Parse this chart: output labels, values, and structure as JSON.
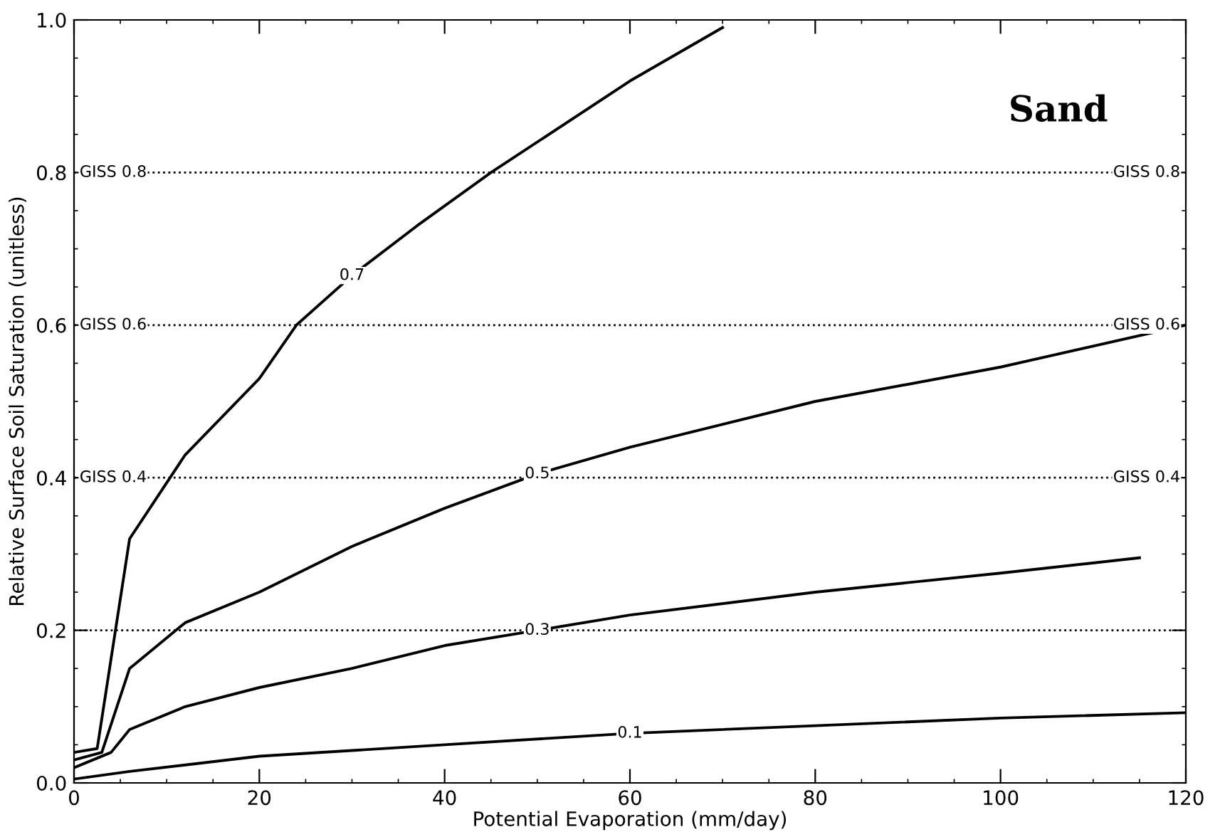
{
  "chart_data": {
    "type": "line",
    "title": "Sand",
    "xlabel": "Potential Evaporation (mm/day)",
    "ylabel": "Relative Surface Soil Saturation (unitless)",
    "xlim": [
      0,
      120
    ],
    "ylim": [
      0,
      1.0
    ],
    "xticks": [
      0,
      20,
      40,
      60,
      80,
      100,
      120
    ],
    "yticks": [
      {
        "value": 0,
        "label": "0.0"
      },
      0.2,
      0.4,
      0.6,
      0.8,
      {
        "value": 1.0,
        "label": "1.0"
      }
    ],
    "grid": false,
    "legend": false,
    "marker": "none",
    "line_style": "solid",
    "series": [
      {
        "name": "0.1",
        "color": "#000000",
        "x": [
          0,
          6,
          20,
          40,
          60,
          80,
          100,
          120
        ],
        "values": [
          0.005,
          0.015,
          0.035,
          0.05,
          0.065,
          0.075,
          0.085,
          0.092
        ]
      },
      {
        "name": "0.3",
        "color": "#000000",
        "x": [
          0,
          4,
          6,
          12,
          20,
          30,
          40,
          50,
          60,
          80,
          100,
          115
        ],
        "values": [
          0.02,
          0.04,
          0.07,
          0.1,
          0.125,
          0.15,
          0.18,
          0.2,
          0.22,
          0.25,
          0.275,
          0.295
        ]
      },
      {
        "name": "0.5",
        "color": "#000000",
        "x": [
          0,
          3,
          6,
          12,
          20,
          30,
          40,
          50,
          60,
          80,
          100,
          120
        ],
        "values": [
          0.03,
          0.04,
          0.15,
          0.21,
          0.25,
          0.31,
          0.36,
          0.405,
          0.44,
          0.5,
          0.545,
          0.6
        ]
      },
      {
        "name": "0.7",
        "color": "#000000",
        "x": [
          0,
          2.5,
          6,
          12,
          20,
          24,
          30,
          37,
          45,
          60,
          70
        ],
        "values": [
          0.04,
          0.045,
          0.32,
          0.43,
          0.53,
          0.6,
          0.665,
          0.73,
          0.8,
          0.92,
          0.99
        ]
      }
    ],
    "ref_lines": [
      {
        "axis": "y",
        "value": 0.2,
        "label": null,
        "line_style": "dotted"
      },
      {
        "axis": "y",
        "value": 0.4,
        "label": "GISS 0.4",
        "line_style": "dotted"
      },
      {
        "axis": "y",
        "value": 0.6,
        "label": "GISS 0.6",
        "line_style": "dotted"
      },
      {
        "axis": "y",
        "value": 0.8,
        "label": "GISS 0.8",
        "line_style": "dotted"
      }
    ]
  }
}
